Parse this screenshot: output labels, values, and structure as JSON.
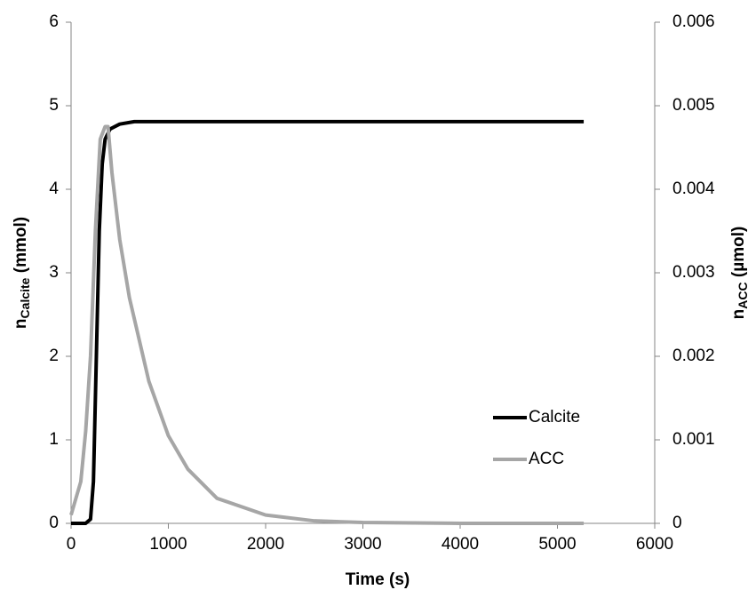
{
  "chart_data": {
    "type": "line",
    "xlabel": "Time (s)",
    "ylabel": [
      "n",
      "Calcite",
      " (mmol)"
    ],
    "y2label": [
      "n",
      "ACC",
      " (µmol)"
    ],
    "xlim": [
      0,
      6000
    ],
    "xticks": [
      0,
      1000,
      2000,
      3000,
      4000,
      5000,
      6000
    ],
    "ylim": [
      0,
      6
    ],
    "yticks": [
      0,
      1,
      2,
      3,
      4,
      5,
      6
    ],
    "y2lim": [
      0,
      0.006
    ],
    "y2ticks": [
      0,
      0.001,
      0.002,
      0.003,
      0.004,
      0.005,
      0.006
    ],
    "grid": false,
    "legend": "right",
    "series": [
      {
        "name": "Calcite",
        "color": "#000000",
        "x": [
          0,
          150,
          200,
          230,
          260,
          290,
          320,
          350,
          400,
          500,
          650,
          1000,
          2000,
          5270
        ],
        "values": [
          0,
          0,
          0.05,
          0.5,
          2,
          3.5,
          4.3,
          4.6,
          4.72,
          4.78,
          4.81,
          4.81,
          4.81,
          4.81
        ]
      },
      {
        "name": "ACC",
        "color": "#a6a6a6",
        "axis": "y2",
        "x": [
          0,
          100,
          150,
          200,
          250,
          300,
          350,
          380,
          420,
          500,
          600,
          800,
          1000,
          1200,
          1500,
          2000,
          2500,
          3000,
          4000,
          5270
        ],
        "values": [
          0.0001,
          0.0005,
          0.0011,
          0.002,
          0.0035,
          0.0046,
          0.00475,
          0.00475,
          0.0042,
          0.0034,
          0.0027,
          0.0017,
          0.00105,
          0.00065,
          0.0003,
          0.0001,
          3e-05,
          1e-05,
          0,
          0
        ]
      }
    ]
  }
}
